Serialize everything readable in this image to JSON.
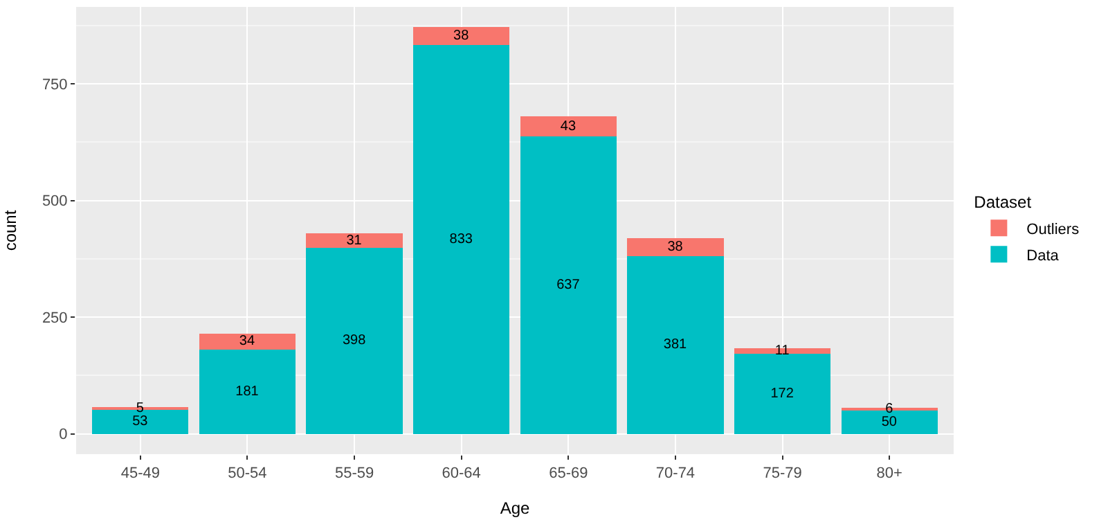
{
  "chart_data": {
    "type": "bar",
    "stacked": true,
    "xlabel": "Age",
    "ylabel": "count",
    "legend_title": "Dataset",
    "legend": "right",
    "categories": [
      "45-49",
      "50-54",
      "55-59",
      "60-64",
      "65-69",
      "70-74",
      "75-79",
      "80+"
    ],
    "series": [
      {
        "name": "Data",
        "color": "#00bfc4",
        "values": [
          53,
          181,
          398,
          833,
          637,
          381,
          172,
          50
        ]
      },
      {
        "name": "Outliers",
        "color": "#f8766d",
        "values": [
          5,
          34,
          31,
          38,
          43,
          38,
          11,
          6
        ]
      }
    ],
    "ylim": [
      -43.5,
      914.5
    ],
    "yticks": [
      0,
      250,
      500,
      750
    ],
    "grid": true,
    "data_labels": true
  }
}
